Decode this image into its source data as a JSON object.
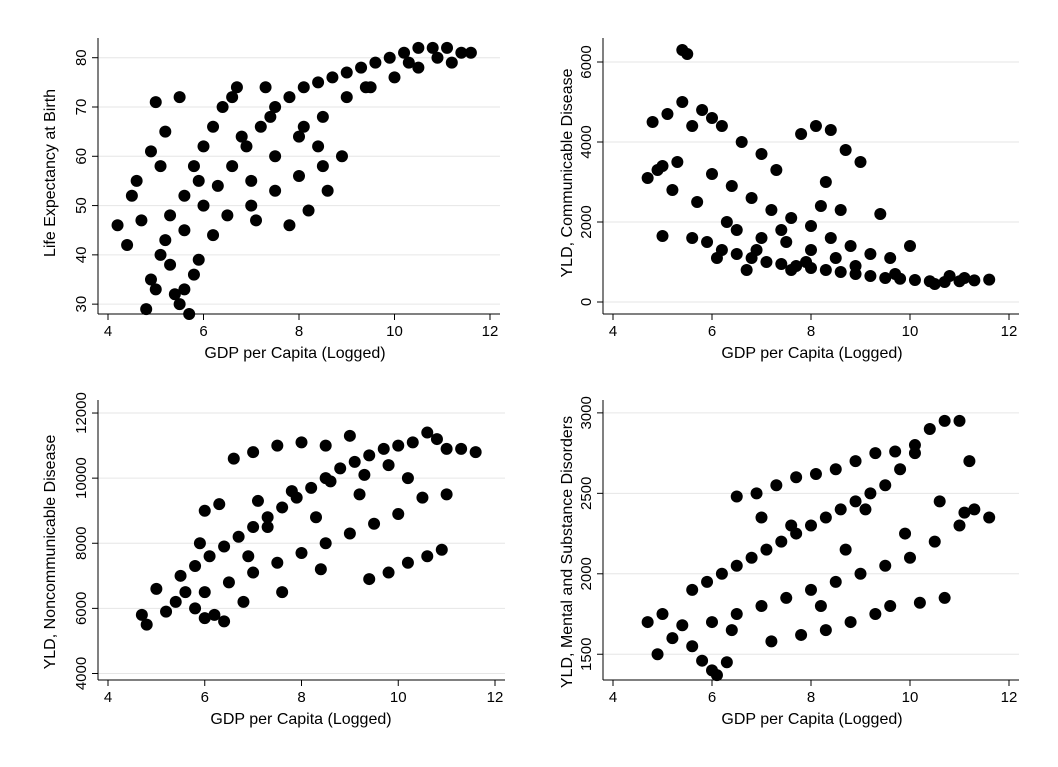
{
  "chart_data": [
    {
      "type": "scatter",
      "xlabel": "GDP per Capita (Logged)",
      "ylabel": "Life Expectancy at Birth",
      "xlim": [
        4,
        12
      ],
      "ylim": [
        28,
        84
      ],
      "xticks": [
        4,
        6,
        8,
        10,
        12
      ],
      "yticks": [
        30,
        40,
        50,
        60,
        70,
        80
      ],
      "grid": true,
      "points": [
        [
          4.2,
          46
        ],
        [
          4.4,
          42
        ],
        [
          4.5,
          52
        ],
        [
          4.6,
          55
        ],
        [
          4.7,
          47
        ],
        [
          4.8,
          29
        ],
        [
          4.9,
          35
        ],
        [
          5.0,
          33
        ],
        [
          5.0,
          71
        ],
        [
          5.1,
          40
        ],
        [
          5.2,
          43
        ],
        [
          5.3,
          38
        ],
        [
          5.4,
          32
        ],
        [
          5.5,
          30
        ],
        [
          5.6,
          33
        ],
        [
          5.7,
          28
        ],
        [
          5.8,
          36
        ],
        [
          5.9,
          39
        ],
        [
          5.2,
          65
        ],
        [
          5.5,
          72
        ],
        [
          5.3,
          48
        ],
        [
          5.6,
          52
        ],
        [
          5.8,
          58
        ],
        [
          6.0,
          62
        ],
        [
          6.2,
          66
        ],
        [
          6.4,
          70
        ],
        [
          6.6,
          72
        ],
        [
          6.0,
          50
        ],
        [
          6.3,
          54
        ],
        [
          6.6,
          58
        ],
        [
          6.9,
          62
        ],
        [
          7.2,
          66
        ],
        [
          7.5,
          70
        ],
        [
          7.8,
          72
        ],
        [
          8.1,
          74
        ],
        [
          8.4,
          75
        ],
        [
          8.7,
          76
        ],
        [
          9.0,
          77
        ],
        [
          9.3,
          78
        ],
        [
          9.6,
          79
        ],
        [
          9.9,
          80
        ],
        [
          10.2,
          81
        ],
        [
          10.5,
          82
        ],
        [
          10.8,
          82
        ],
        [
          11.1,
          82
        ],
        [
          11.4,
          81
        ],
        [
          11.6,
          81
        ],
        [
          7.0,
          55
        ],
        [
          7.5,
          60
        ],
        [
          8.0,
          64
        ],
        [
          8.5,
          68
        ],
        [
          9.0,
          72
        ],
        [
          9.5,
          74
        ],
        [
          10.0,
          76
        ],
        [
          10.5,
          78
        ],
        [
          6.5,
          48
        ],
        [
          7.0,
          50
        ],
        [
          7.5,
          53
        ],
        [
          8.0,
          56
        ],
        [
          8.5,
          58
        ],
        [
          8.9,
          60
        ],
        [
          7.8,
          46
        ],
        [
          8.2,
          49
        ],
        [
          8.6,
          53
        ],
        [
          8.1,
          66
        ],
        [
          8.4,
          62
        ],
        [
          7.4,
          68
        ],
        [
          6.8,
          64
        ],
        [
          5.9,
          55
        ],
        [
          5.6,
          45
        ],
        [
          5.1,
          58
        ],
        [
          4.9,
          61
        ],
        [
          6.7,
          74
        ],
        [
          7.3,
          74
        ],
        [
          9.4,
          74
        ],
        [
          10.3,
          79
        ],
        [
          10.9,
          80
        ],
        [
          11.2,
          79
        ],
        [
          6.2,
          44
        ],
        [
          7.1,
          47
        ]
      ]
    },
    {
      "type": "scatter",
      "xlabel": "GDP per Capita (Logged)",
      "ylabel": "YLD, Communicable Disease",
      "xlim": [
        4,
        12
      ],
      "ylim": [
        -300,
        6600
      ],
      "xticks": [
        4,
        6,
        8,
        10,
        12
      ],
      "yticks": [
        0,
        2000,
        4000,
        6000
      ],
      "grid": true,
      "points": [
        [
          4.7,
          3100
        ],
        [
          4.8,
          4500
        ],
        [
          4.9,
          3300
        ],
        [
          5.0,
          1650
        ],
        [
          5.1,
          4700
        ],
        [
          5.2,
          2800
        ],
        [
          5.3,
          3500
        ],
        [
          5.4,
          6300
        ],
        [
          5.5,
          6200
        ],
        [
          5.4,
          5000
        ],
        [
          5.6,
          4400
        ],
        [
          5.8,
          4800
        ],
        [
          6.0,
          4600
        ],
        [
          6.2,
          4400
        ],
        [
          5.6,
          1600
        ],
        [
          5.9,
          1500
        ],
        [
          6.2,
          1300
        ],
        [
          6.5,
          1200
        ],
        [
          6.8,
          1100
        ],
        [
          7.1,
          1000
        ],
        [
          7.4,
          950
        ],
        [
          7.7,
          900
        ],
        [
          8.0,
          850
        ],
        [
          8.3,
          800
        ],
        [
          8.6,
          750
        ],
        [
          8.9,
          700
        ],
        [
          9.2,
          650
        ],
        [
          9.5,
          600
        ],
        [
          9.8,
          580
        ],
        [
          10.1,
          550
        ],
        [
          10.4,
          520
        ],
        [
          10.7,
          500
        ],
        [
          11.0,
          520
        ],
        [
          11.3,
          540
        ],
        [
          11.6,
          560
        ],
        [
          6.0,
          3200
        ],
        [
          6.4,
          2900
        ],
        [
          6.8,
          2600
        ],
        [
          7.2,
          2300
        ],
        [
          7.6,
          2100
        ],
        [
          8.0,
          1900
        ],
        [
          8.4,
          1600
        ],
        [
          8.8,
          1400
        ],
        [
          9.2,
          1200
        ],
        [
          9.6,
          1100
        ],
        [
          10.0,
          1400
        ],
        [
          6.5,
          1800
        ],
        [
          7.0,
          1600
        ],
        [
          7.5,
          1500
        ],
        [
          8.0,
          1300
        ],
        [
          8.5,
          1100
        ],
        [
          7.8,
          4200
        ],
        [
          8.1,
          4400
        ],
        [
          8.4,
          4300
        ],
        [
          8.7,
          3800
        ],
        [
          9.0,
          3500
        ],
        [
          8.3,
          3000
        ],
        [
          8.6,
          2300
        ],
        [
          9.4,
          2200
        ],
        [
          7.0,
          3700
        ],
        [
          6.6,
          4000
        ],
        [
          7.3,
          3300
        ],
        [
          5.7,
          2500
        ],
        [
          6.3,
          2000
        ],
        [
          6.9,
          1300
        ],
        [
          7.6,
          800
        ],
        [
          8.9,
          900
        ],
        [
          9.7,
          700
        ],
        [
          10.5,
          450
        ],
        [
          5.0,
          3400
        ],
        [
          6.1,
          1100
        ],
        [
          6.7,
          800
        ],
        [
          7.4,
          1800
        ],
        [
          7.9,
          1000
        ],
        [
          8.2,
          2400
        ],
        [
          10.8,
          650
        ],
        [
          11.1,
          600
        ]
      ]
    },
    {
      "type": "scatter",
      "xlabel": "GDP per Capita (Logged)",
      "ylabel": "YLD, Noncommunicable Disease",
      "xlim": [
        4,
        12
      ],
      "ylim": [
        3800,
        12400
      ],
      "xticks": [
        4,
        6,
        8,
        10,
        12
      ],
      "yticks": [
        4000,
        6000,
        8000,
        10000,
        12000
      ],
      "grid": true,
      "points": [
        [
          4.7,
          5800
        ],
        [
          4.8,
          5500
        ],
        [
          5.0,
          6600
        ],
        [
          5.2,
          5900
        ],
        [
          5.4,
          6200
        ],
        [
          5.6,
          6500
        ],
        [
          5.8,
          6000
        ],
        [
          6.0,
          5700
        ],
        [
          6.2,
          5800
        ],
        [
          6.4,
          5600
        ],
        [
          5.5,
          7000
        ],
        [
          5.8,
          7300
        ],
        [
          6.1,
          7600
        ],
        [
          6.4,
          7900
        ],
        [
          6.7,
          8200
        ],
        [
          7.0,
          8500
        ],
        [
          7.3,
          8800
        ],
        [
          7.6,
          9100
        ],
        [
          7.9,
          9400
        ],
        [
          8.2,
          9700
        ],
        [
          8.5,
          10000
        ],
        [
          8.8,
          10300
        ],
        [
          9.1,
          10500
        ],
        [
          9.4,
          10700
        ],
        [
          9.7,
          10900
        ],
        [
          10.0,
          11000
        ],
        [
          10.3,
          11100
        ],
        [
          10.6,
          11400
        ],
        [
          10.8,
          11200
        ],
        [
          11.0,
          10900
        ],
        [
          11.3,
          10900
        ],
        [
          11.6,
          10800
        ],
        [
          6.0,
          6500
        ],
        [
          6.5,
          6800
        ],
        [
          7.0,
          7100
        ],
        [
          7.5,
          7400
        ],
        [
          8.0,
          7700
        ],
        [
          8.5,
          8000
        ],
        [
          9.0,
          8300
        ],
        [
          9.5,
          8600
        ],
        [
          10.0,
          8900
        ],
        [
          10.5,
          9400
        ],
        [
          11.0,
          9500
        ],
        [
          6.6,
          10600
        ],
        [
          7.0,
          10800
        ],
        [
          7.5,
          11000
        ],
        [
          8.0,
          11100
        ],
        [
          8.5,
          11000
        ],
        [
          9.0,
          11300
        ],
        [
          6.0,
          9000
        ],
        [
          6.3,
          9200
        ],
        [
          7.1,
          9300
        ],
        [
          7.8,
          9600
        ],
        [
          8.6,
          9900
        ],
        [
          9.3,
          10100
        ],
        [
          9.8,
          10400
        ],
        [
          9.4,
          6900
        ],
        [
          9.8,
          7100
        ],
        [
          10.2,
          7400
        ],
        [
          10.6,
          7600
        ],
        [
          10.9,
          7800
        ],
        [
          7.3,
          8500
        ],
        [
          8.3,
          8800
        ],
        [
          9.2,
          9500
        ],
        [
          10.2,
          10000
        ],
        [
          6.8,
          6200
        ],
        [
          7.6,
          6500
        ],
        [
          8.4,
          7200
        ],
        [
          5.9,
          8000
        ],
        [
          6.9,
          7600
        ]
      ]
    },
    {
      "type": "scatter",
      "xlabel": "GDP per Capita (Logged)",
      "ylabel": "YLD, Mental and Substance Disorders",
      "xlim": [
        4,
        12
      ],
      "ylim": [
        1340,
        3080
      ],
      "xticks": [
        4,
        6,
        8,
        10,
        12
      ],
      "yticks": [
        1500,
        2000,
        2500,
        3000
      ],
      "grid": true,
      "points": [
        [
          4.7,
          1700
        ],
        [
          4.9,
          1500
        ],
        [
          5.0,
          1750
        ],
        [
          5.2,
          1600
        ],
        [
          5.4,
          1680
        ],
        [
          5.6,
          1550
        ],
        [
          5.8,
          1460
        ],
        [
          6.0,
          1400
        ],
        [
          6.1,
          1370
        ],
        [
          6.3,
          1450
        ],
        [
          5.6,
          1900
        ],
        [
          5.9,
          1950
        ],
        [
          6.2,
          2000
        ],
        [
          6.5,
          2050
        ],
        [
          6.8,
          2100
        ],
        [
          7.1,
          2150
        ],
        [
          7.4,
          2200
        ],
        [
          7.7,
          2250
        ],
        [
          8.0,
          2300
        ],
        [
          8.3,
          2350
        ],
        [
          8.6,
          2400
        ],
        [
          8.9,
          2450
        ],
        [
          9.2,
          2500
        ],
        [
          9.5,
          2550
        ],
        [
          9.8,
          2650
        ],
        [
          10.1,
          2800
        ],
        [
          10.4,
          2900
        ],
        [
          10.7,
          2950
        ],
        [
          11.0,
          2950
        ],
        [
          11.2,
          2700
        ],
        [
          6.5,
          2480
        ],
        [
          6.9,
          2500
        ],
        [
          7.3,
          2550
        ],
        [
          7.7,
          2600
        ],
        [
          8.1,
          2620
        ],
        [
          8.5,
          2650
        ],
        [
          8.9,
          2700
        ],
        [
          9.3,
          2750
        ],
        [
          9.7,
          2760
        ],
        [
          10.1,
          2750
        ],
        [
          6.0,
          1700
        ],
        [
          6.5,
          1750
        ],
        [
          7.0,
          1800
        ],
        [
          7.5,
          1850
        ],
        [
          8.0,
          1900
        ],
        [
          8.5,
          1950
        ],
        [
          9.0,
          2000
        ],
        [
          9.5,
          2050
        ],
        [
          10.0,
          2100
        ],
        [
          10.5,
          2200
        ],
        [
          11.0,
          2300
        ],
        [
          11.3,
          2400
        ],
        [
          11.6,
          2350
        ],
        [
          7.2,
          1580
        ],
        [
          7.8,
          1620
        ],
        [
          8.3,
          1650
        ],
        [
          8.8,
          1700
        ],
        [
          9.3,
          1750
        ],
        [
          9.6,
          1800
        ],
        [
          10.2,
          1820
        ],
        [
          10.7,
          1850
        ],
        [
          7.0,
          2350
        ],
        [
          7.6,
          2300
        ],
        [
          8.7,
          2150
        ],
        [
          9.9,
          2250
        ],
        [
          10.6,
          2450
        ],
        [
          11.1,
          2380
        ],
        [
          6.4,
          1650
        ],
        [
          8.2,
          1800
        ],
        [
          9.1,
          2400
        ]
      ]
    }
  ]
}
